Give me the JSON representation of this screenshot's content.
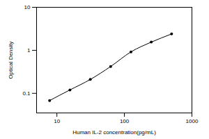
{
  "chart_data": {
    "type": "line",
    "x_label": "Human IL-2 concentration(pg/mL)",
    "y_label": "Optical Density",
    "x": [
      7.8,
      15.6,
      31.25,
      62.5,
      125,
      250,
      500
    ],
    "values": [
      0.068,
      0.12,
      0.21,
      0.42,
      0.92,
      1.55,
      2.4
    ],
    "color": "#000000",
    "marker": "circle",
    "log": true,
    "xlim": [
      5,
      1000
    ],
    "xticks": [
      10,
      100,
      1000
    ],
    "ylim": [
      0.035,
      10
    ],
    "yticks": [
      0.1,
      1,
      10
    ]
  }
}
